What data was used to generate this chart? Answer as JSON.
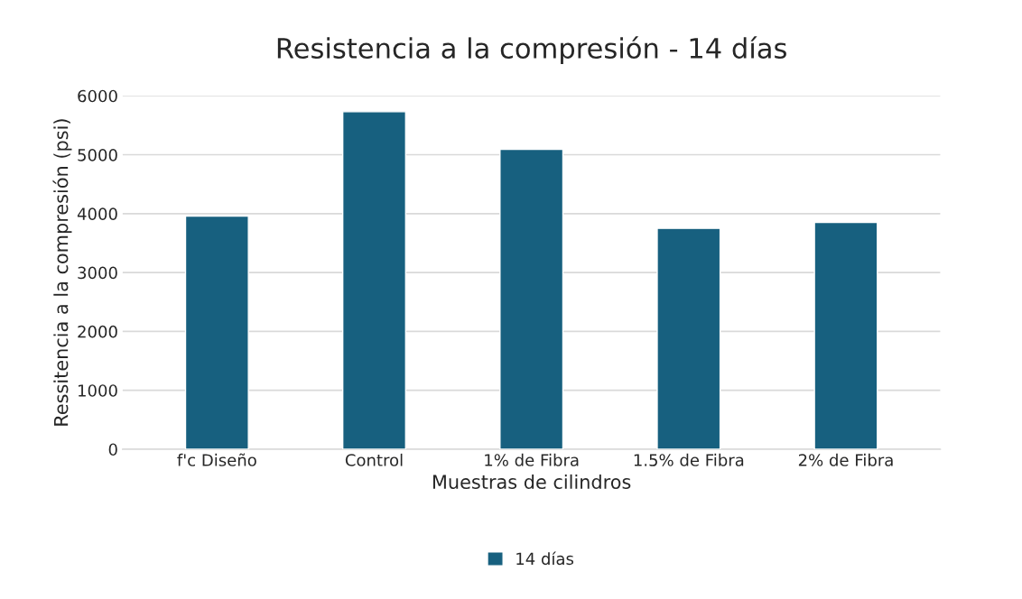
{
  "chart_data": {
    "type": "bar",
    "title": "Resistencia a la compresión - 14 días",
    "xlabel": "Muestras de cilindros",
    "ylabel": "Ressitencia a la compresión (psi)",
    "categories": [
      "f'c Diseño",
      "Control",
      "1% de Fibra",
      "1.5% de Fibra",
      "2% de Fibra"
    ],
    "series": [
      {
        "name": "14 días",
        "color": "#17607f",
        "values": [
          3960,
          5730,
          5090,
          3750,
          3850
        ]
      }
    ],
    "ylim": [
      0,
      6000
    ],
    "yticks": [
      0,
      1000,
      2000,
      3000,
      4000,
      5000,
      6000
    ],
    "grid": "y",
    "legend": "bottom"
  }
}
